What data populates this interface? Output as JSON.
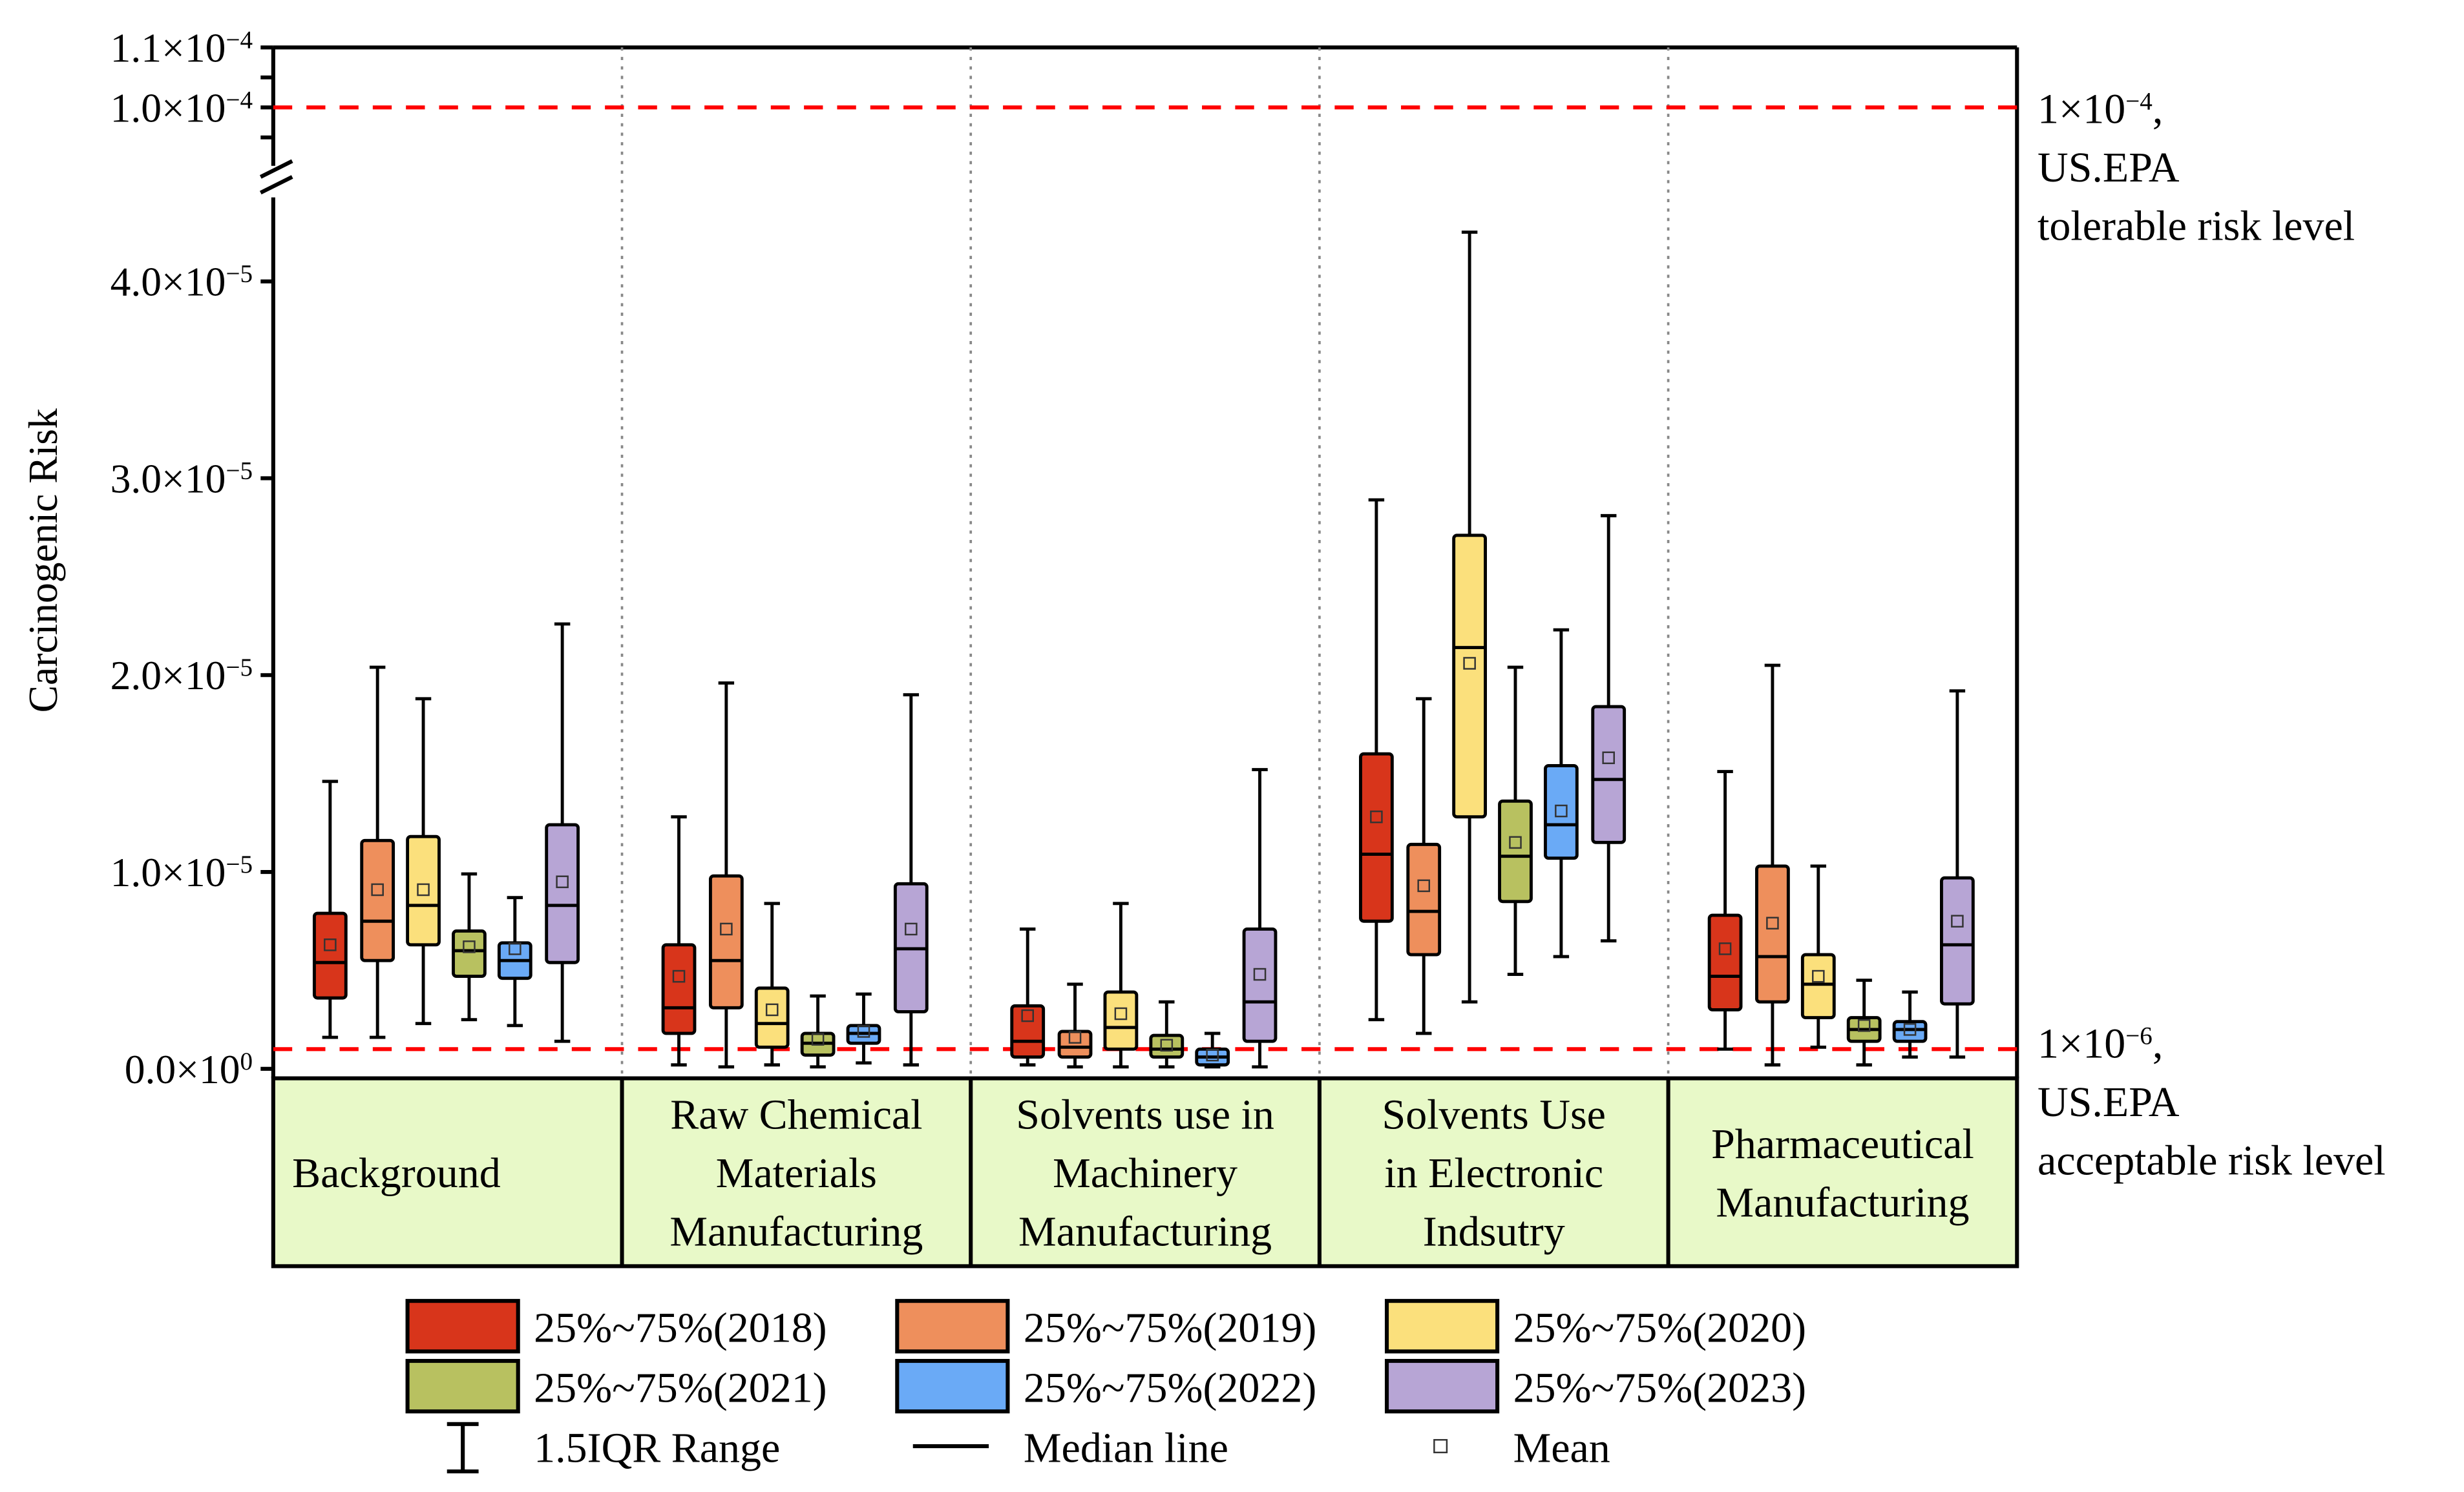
{
  "chart_data": {
    "type": "box",
    "ylabel": "Carcinogenic Risk",
    "y_unit": "1e-5",
    "ylim": [
      0,
      11
    ],
    "y_break": [
      4.5,
      9.5
    ],
    "yticks": [
      {
        "value": 0,
        "label": "0.0×10",
        "exp": "0"
      },
      {
        "value": 1,
        "label": "1.0×10",
        "exp": "−5"
      },
      {
        "value": 2,
        "label": "2.0×10",
        "exp": "−5"
      },
      {
        "value": 3,
        "label": "3.0×10",
        "exp": "−5"
      },
      {
        "value": 4,
        "label": "4.0×10",
        "exp": "−5"
      },
      {
        "value": 10,
        "label": "1.0×10",
        "exp": "−4"
      },
      {
        "value": 11,
        "label": "1.1×10",
        "exp": "−4"
      }
    ],
    "reference_lines": [
      {
        "value": 10,
        "lines": [
          "1×10",
          "US.EPA",
          "tolerable risk level"
        ],
        "exp": "−4",
        "color": "#ff0000"
      },
      {
        "value": 0.1,
        "lines": [
          "1×10",
          "US.EPA",
          "acceptable risk level"
        ],
        "exp": "−6",
        "color": "#ff0000"
      }
    ],
    "categories": [
      {
        "lines": [
          "Background"
        ]
      },
      {
        "lines": [
          "Raw Chemical",
          "Materials",
          "Manufacturing"
        ]
      },
      {
        "lines": [
          "Solvents use in",
          "Machinery",
          "Manufacturing"
        ]
      },
      {
        "lines": [
          "Solvents Use",
          "in Electronic",
          "Indsutry"
        ]
      },
      {
        "lines": [
          "Pharmaceutical",
          "Manufacturing"
        ]
      }
    ],
    "series": [
      {
        "name": "2018",
        "legend": "25%~75%(2018)",
        "color": "#d8351b",
        "boxes": [
          [
            0.16,
            0.36,
            0.54,
            0.79,
            1.46,
            0.63
          ],
          [
            0.02,
            0.18,
            0.31,
            0.63,
            1.28,
            0.47
          ],
          [
            0.02,
            0.06,
            0.14,
            0.32,
            0.71,
            0.27
          ],
          [
            0.25,
            0.75,
            1.09,
            1.6,
            2.89,
            1.28
          ],
          [
            0.1,
            0.3,
            0.47,
            0.78,
            1.51,
            0.61
          ]
        ]
      },
      {
        "name": "2019",
        "legend": "25%~75%(2019)",
        "color": "#ee8f5c",
        "boxes": [
          [
            0.16,
            0.55,
            0.75,
            1.16,
            2.04,
            0.91
          ],
          [
            0.01,
            0.31,
            0.55,
            0.98,
            1.96,
            0.71
          ],
          [
            0.01,
            0.06,
            0.11,
            0.19,
            0.43,
            0.16
          ],
          [
            0.18,
            0.58,
            0.8,
            1.14,
            1.88,
            0.93
          ],
          [
            0.02,
            0.34,
            0.57,
            1.03,
            2.05,
            0.74
          ]
        ]
      },
      {
        "name": "2020",
        "legend": "25%~75%(2020)",
        "color": "#fbe07c",
        "boxes": [
          [
            0.23,
            0.63,
            0.83,
            1.18,
            1.88,
            0.91
          ],
          [
            0.02,
            0.11,
            0.23,
            0.41,
            0.84,
            0.3
          ],
          [
            0.01,
            0.1,
            0.21,
            0.39,
            0.84,
            0.28
          ],
          [
            0.34,
            1.28,
            2.14,
            2.71,
            4.25,
            2.06
          ],
          [
            0.11,
            0.26,
            0.43,
            0.58,
            1.03,
            0.47
          ]
        ]
      },
      {
        "name": "2021",
        "legend": "25%~75%(2021)",
        "color": "#b8c160",
        "boxes": [
          [
            0.25,
            0.47,
            0.6,
            0.7,
            0.99,
            0.62
          ],
          [
            0.01,
            0.07,
            0.13,
            0.18,
            0.37,
            0.15
          ],
          [
            0.01,
            0.06,
            0.1,
            0.17,
            0.34,
            0.12
          ],
          [
            0.48,
            0.85,
            1.08,
            1.36,
            2.04,
            1.15
          ],
          [
            0.02,
            0.14,
            0.2,
            0.26,
            0.45,
            0.22
          ]
        ]
      },
      {
        "name": "2022",
        "legend": "25%~75%(2022)",
        "color": "#6aaaf6",
        "boxes": [
          [
            0.22,
            0.46,
            0.55,
            0.64,
            0.87,
            0.61
          ],
          [
            0.03,
            0.13,
            0.18,
            0.22,
            0.38,
            0.19
          ],
          [
            0.01,
            0.02,
            0.06,
            0.1,
            0.18,
            0.07
          ],
          [
            0.57,
            1.07,
            1.24,
            1.54,
            2.23,
            1.31
          ],
          [
            0.06,
            0.14,
            0.2,
            0.24,
            0.39,
            0.2
          ]
        ]
      },
      {
        "name": "2023",
        "legend": "25%~75%(2023)",
        "color": "#b7a5d5",
        "boxes": [
          [
            0.14,
            0.54,
            0.83,
            1.24,
            2.26,
            0.95
          ],
          [
            0.02,
            0.29,
            0.61,
            0.94,
            1.9,
            0.71
          ],
          [
            0.01,
            0.14,
            0.34,
            0.71,
            1.52,
            0.48
          ],
          [
            0.65,
            1.15,
            1.47,
            1.84,
            2.81,
            1.58
          ],
          [
            0.06,
            0.33,
            0.63,
            0.97,
            1.92,
            0.75
          ]
        ]
      }
    ],
    "box_fields": [
      "whisker_low",
      "q1",
      "median",
      "q3",
      "whisker_high",
      "mean"
    ],
    "legend_extra": {
      "range": "1.5IQR Range",
      "median": "Median line",
      "mean": "Mean"
    },
    "category_panel_color": "#e8f9c8"
  }
}
